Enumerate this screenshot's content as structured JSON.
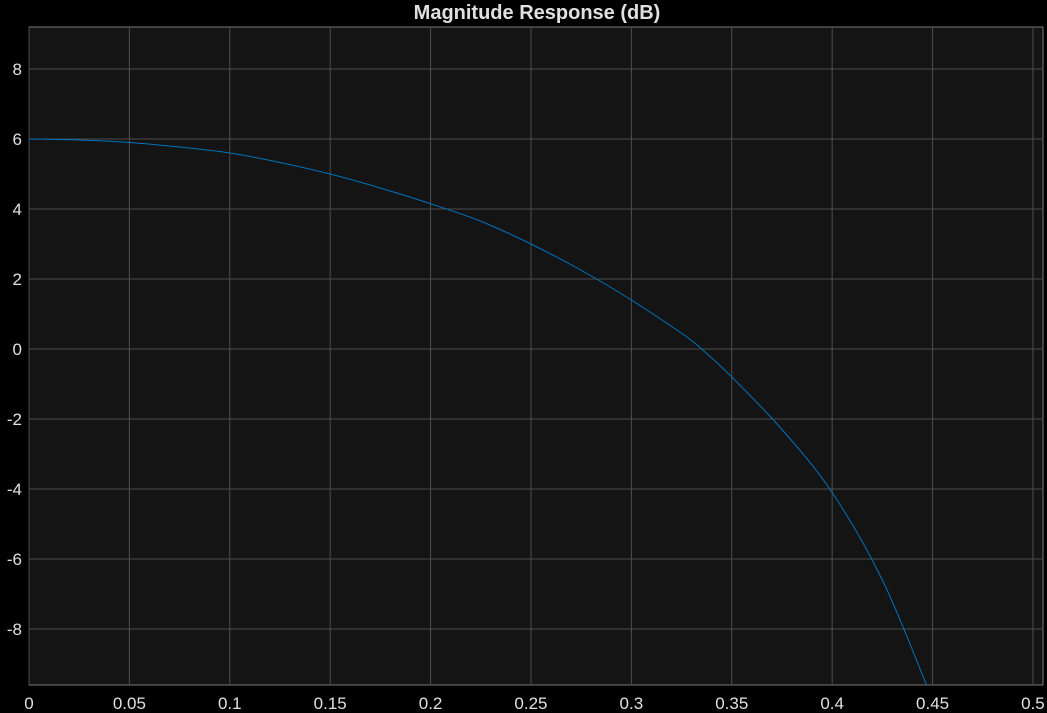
{
  "chart_data": {
    "type": "line",
    "title": "Magnitude Response (dB)",
    "xlabel": "",
    "ylabel": "",
    "xlim": [
      0,
      0.505
    ],
    "ylim": [
      -9.6,
      9.2
    ],
    "xticks": [
      0,
      0.05,
      0.1,
      0.15,
      0.2,
      0.25,
      0.3,
      0.35,
      0.4,
      0.45,
      0.5
    ],
    "xtick_labels": [
      "0",
      "0.05",
      "0.1",
      "0.15",
      "0.2",
      "0.25",
      "0.3",
      "0.35",
      "0.4",
      "0.45",
      "0.5"
    ],
    "yticks": [
      8,
      6,
      4,
      2,
      0,
      -2,
      -4,
      -6,
      -8
    ],
    "ytick_labels": [
      "8",
      "6",
      "4",
      "2",
      "0",
      "-2",
      "-4",
      "-6",
      "-8"
    ],
    "grid": true,
    "series": [
      {
        "color": "#0072bd",
        "x": [
          0,
          0.025,
          0.05,
          0.075,
          0.1,
          0.125,
          0.15,
          0.175,
          0.2,
          0.225,
          0.25,
          0.275,
          0.3,
          0.325,
          0.335,
          0.35,
          0.375,
          0.4,
          0.425,
          0.447
        ],
        "y": [
          6.0,
          5.97,
          5.9,
          5.77,
          5.6,
          5.33,
          5.0,
          4.6,
          4.15,
          3.65,
          3.0,
          2.25,
          1.4,
          0.45,
          0.0,
          -0.8,
          -2.3,
          -4.1,
          -6.6,
          -9.6
        ]
      }
    ]
  }
}
